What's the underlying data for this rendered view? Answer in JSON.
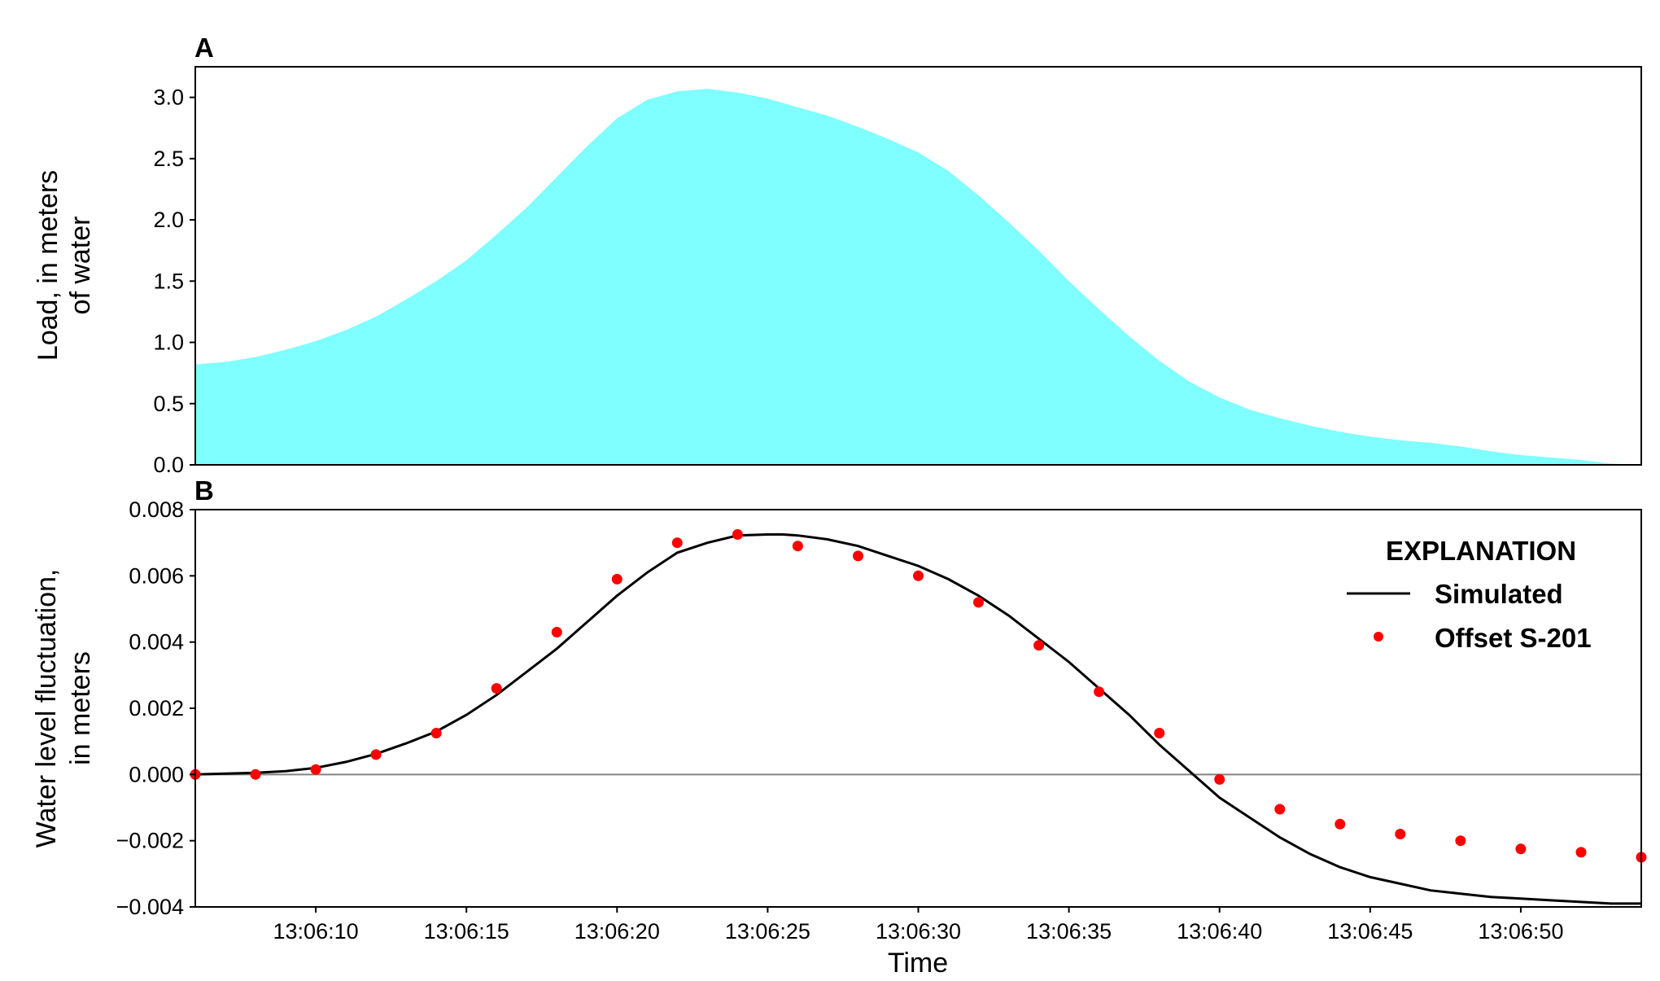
{
  "chart_data": [
    {
      "panel": "A",
      "type": "area",
      "ylabel_line1": "Load, in meters",
      "ylabel_line2": "of water",
      "xlim": [
        6,
        54
      ],
      "ylim": [
        0,
        3.25
      ],
      "yticks": [
        "0.0",
        "0.5",
        "1.0",
        "1.5",
        "2.0",
        "2.5",
        "3.0"
      ],
      "fill_color": "#7fffff",
      "x": [
        6,
        7,
        8,
        9,
        10,
        11,
        12,
        13,
        14,
        15,
        16,
        17,
        18,
        19,
        20,
        21,
        22,
        23,
        24,
        25,
        26,
        27,
        28,
        29,
        30,
        31,
        32,
        33,
        34,
        35,
        36,
        37,
        38,
        39,
        40,
        41,
        42,
        43,
        44,
        45,
        46,
        47,
        48,
        49,
        50,
        51,
        52,
        53,
        54
      ],
      "values": [
        0.82,
        0.84,
        0.88,
        0.94,
        1.01,
        1.1,
        1.21,
        1.35,
        1.5,
        1.67,
        1.88,
        2.1,
        2.35,
        2.6,
        2.83,
        2.98,
        3.05,
        3.07,
        3.04,
        2.99,
        2.92,
        2.85,
        2.76,
        2.66,
        2.55,
        2.4,
        2.2,
        1.98,
        1.75,
        1.5,
        1.27,
        1.05,
        0.85,
        0.68,
        0.55,
        0.45,
        0.38,
        0.32,
        0.27,
        0.23,
        0.2,
        0.18,
        0.15,
        0.11,
        0.08,
        0.06,
        0.04,
        0.01,
        0.0
      ]
    },
    {
      "panel": "B",
      "type": "line",
      "xlabel": "Time",
      "ylabel_line1": "Water level fluctuation,",
      "ylabel_line2": "in meters",
      "xlim": [
        6,
        54
      ],
      "ylim": [
        -0.004,
        0.008
      ],
      "yticks": [
        "0.008",
        "0.006",
        "0.004",
        "0.002",
        "0.000",
        "−0.002",
        "−0.004"
      ],
      "xticks": [
        "13:06:10",
        "13:06:15",
        "13:06:20",
        "13:06:25",
        "13:06:30",
        "13:06:35",
        "13:06:40",
        "13:06:45",
        "13:06:50"
      ],
      "xtick_values": [
        10,
        15,
        20,
        25,
        30,
        35,
        40,
        45,
        50
      ],
      "zero_line_color": "#808080",
      "legend": {
        "title": "EXPLANATION",
        "position": "top-right",
        "items": [
          {
            "label": "Simulated",
            "kind": "line",
            "color": "#000000"
          },
          {
            "label": "Offset S-201",
            "kind": "dot",
            "color": "#ff0000"
          }
        ]
      },
      "series": [
        {
          "name": "Simulated",
          "kind": "line",
          "color": "#000000",
          "x": [
            6,
            8,
            9,
            10,
            11,
            12,
            13,
            14,
            15,
            16,
            17,
            18,
            19,
            20,
            21,
            22,
            23,
            24,
            25,
            25.5,
            26,
            27,
            28,
            29,
            30,
            31,
            32,
            33,
            34,
            35,
            36,
            37,
            38,
            39,
            40,
            41,
            42,
            43,
            44,
            45,
            46,
            47,
            48,
            49,
            50,
            51,
            52,
            53,
            54
          ],
          "y": [
            0.0,
            5e-05,
            0.0001,
            0.0002,
            0.00038,
            0.00062,
            0.00094,
            0.0013,
            0.0018,
            0.0024,
            0.0031,
            0.0038,
            0.0046,
            0.0054,
            0.0061,
            0.0067,
            0.007,
            0.00722,
            0.00725,
            0.00725,
            0.00722,
            0.0071,
            0.0069,
            0.0066,
            0.0063,
            0.0059,
            0.0054,
            0.0048,
            0.0041,
            0.0034,
            0.0026,
            0.0018,
            0.0009,
            0.0001,
            -0.0007,
            -0.0013,
            -0.0019,
            -0.0024,
            -0.0028,
            -0.0031,
            -0.0033,
            -0.0035,
            -0.0036,
            -0.0037,
            -0.00375,
            -0.0038,
            -0.00385,
            -0.0039,
            -0.0039
          ]
        },
        {
          "name": "Offset S-201",
          "kind": "scatter",
          "color": "#ff0000",
          "x": [
            6,
            8,
            10,
            12,
            14,
            16,
            18,
            20,
            22,
            24,
            26,
            28,
            30,
            32,
            34,
            36,
            38,
            40,
            42,
            44,
            46,
            48,
            50,
            52,
            54
          ],
          "y": [
            0.0,
            0.0,
            0.00015,
            0.0006,
            0.00125,
            0.0026,
            0.0043,
            0.0059,
            0.007,
            0.00725,
            0.0069,
            0.0066,
            0.006,
            0.0052,
            0.0039,
            0.0025,
            0.00125,
            -0.00015,
            -0.00105,
            -0.0015,
            -0.0018,
            -0.002,
            -0.00225,
            -0.00235,
            -0.0025
          ]
        }
      ]
    }
  ]
}
